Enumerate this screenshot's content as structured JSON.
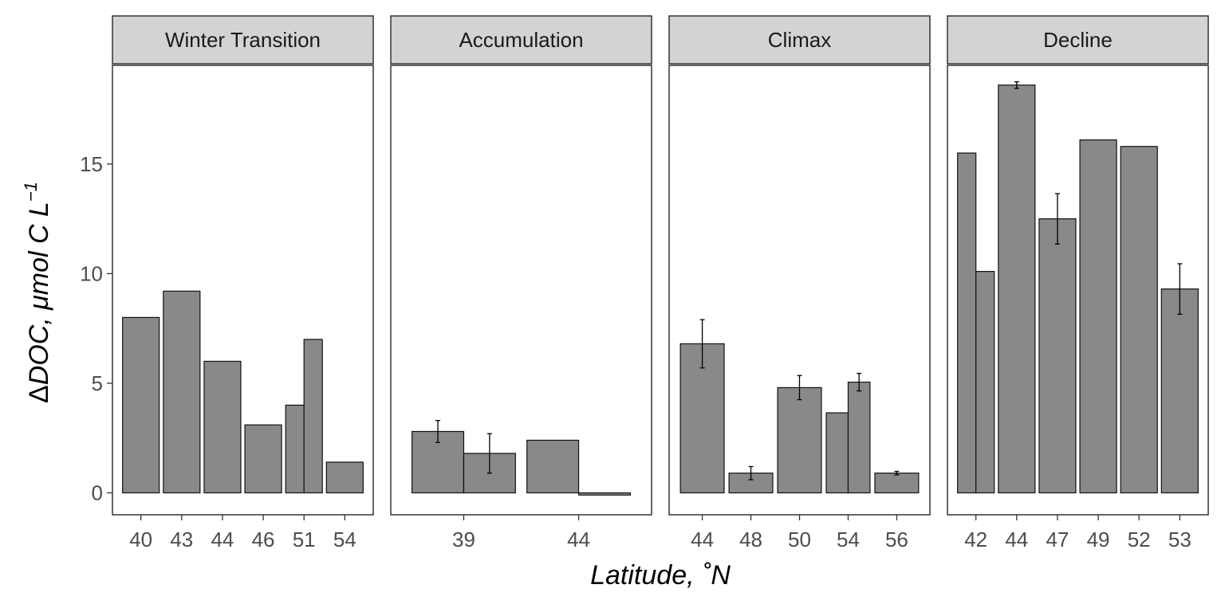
{
  "chart_data": {
    "type": "bar",
    "xlabel": "Latitude, ˚N",
    "ylabel": {
      "delta": "Δ",
      "main": "DOC, μmol C L",
      "superscript": "−1"
    },
    "ylim": [
      -1,
      19.5
    ],
    "yticks": [
      0,
      5,
      10,
      15
    ],
    "grid": false,
    "legend": "none",
    "colors": {
      "bar_fill": "#898989",
      "bar_stroke": "#111111",
      "strip": "#d3d3d3",
      "text": "#4d4d4d"
    },
    "panels": [
      {
        "title": "Winter Transition",
        "categories": [
          "40",
          "43",
          "44",
          "46",
          "51",
          "54"
        ],
        "groups": [
          {
            "x": "40",
            "values": [
              8.0
            ]
          },
          {
            "x": "43",
            "values": [
              9.2
            ]
          },
          {
            "x": "44",
            "values": [
              6.0
            ]
          },
          {
            "x": "46",
            "values": [
              3.1
            ]
          },
          {
            "x": "51",
            "values": [
              4.0,
              7.0
            ]
          },
          {
            "x": "54",
            "values": [
              1.4
            ]
          }
        ]
      },
      {
        "title": "Accumulation",
        "categories": [
          "39",
          "44"
        ],
        "groups": [
          {
            "x": "39",
            "values": [
              2.8,
              1.8
            ],
            "errors": [
              0.5,
              0.9
            ]
          },
          {
            "x": "44",
            "values": [
              2.4,
              -0.1
            ]
          }
        ]
      },
      {
        "title": "Climax",
        "categories": [
          "44",
          "48",
          "50",
          "54",
          "56"
        ],
        "groups": [
          {
            "x": "44",
            "values": [
              6.8
            ],
            "errors": [
              1.1
            ]
          },
          {
            "x": "48",
            "values": [
              0.9
            ],
            "errors": [
              0.3
            ]
          },
          {
            "x": "50",
            "values": [
              4.8
            ],
            "errors": [
              0.55
            ]
          },
          {
            "x": "54",
            "values": [
              3.65,
              5.05
            ],
            "errors": [
              null,
              0.4
            ]
          },
          {
            "x": "56",
            "values": [
              0.9
            ],
            "errors": [
              0.08
            ]
          }
        ]
      },
      {
        "title": "Decline",
        "categories": [
          "42",
          "44",
          "47",
          "49",
          "52",
          "53"
        ],
        "groups": [
          {
            "x": "42",
            "values": [
              15.5,
              10.1
            ]
          },
          {
            "x": "44",
            "values": [
              18.6
            ],
            "errors": [
              0.15
            ]
          },
          {
            "x": "47",
            "values": [
              12.5
            ],
            "errors": [
              1.15
            ]
          },
          {
            "x": "49",
            "values": [
              16.1
            ]
          },
          {
            "x": "52",
            "values": [
              15.8
            ]
          },
          {
            "x": "53",
            "values": [
              9.3
            ],
            "errors": [
              1.15
            ]
          }
        ]
      }
    ]
  }
}
